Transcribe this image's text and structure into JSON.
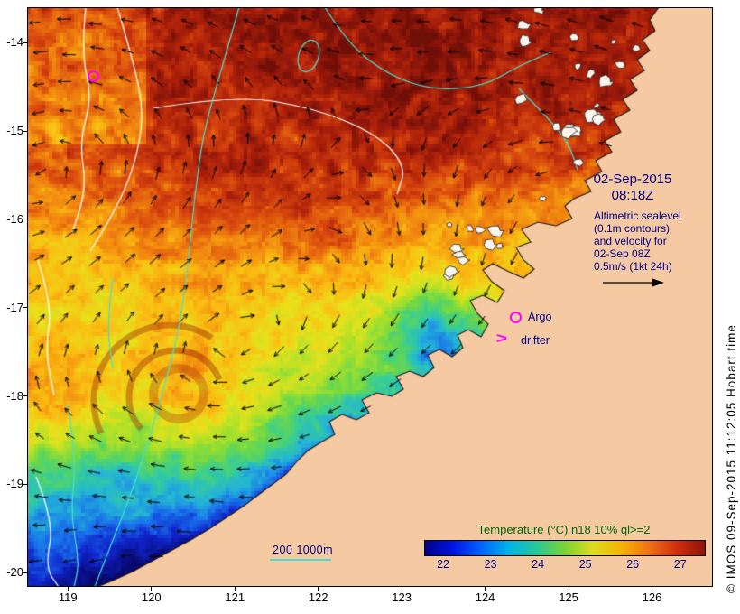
{
  "map": {
    "datetime": {
      "line1": "02-Sep-2015",
      "line2": "08:18Z"
    },
    "altimetric_note": [
      "Altimetric sealevel",
      "(0.1m contours)",
      "and velocity for",
      "02-Sep 08Z",
      "0.5m/s (1kt 24h)"
    ],
    "legend": {
      "argo": "Argo",
      "drifter": "drifter",
      "drifter_symbol": ">"
    },
    "depth_contour_label": "200  1000m",
    "copyright": "© IMOS 09-Sep-2015 11:12:05 Hobart time"
  },
  "axes": {
    "x_ticks": [
      119,
      120,
      121,
      122,
      123,
      124,
      125,
      126
    ],
    "y_ticks": [
      -14,
      -15,
      -16,
      -17,
      -18,
      -19,
      -20
    ],
    "x_range": [
      118.51,
      126.73
    ],
    "y_range": [
      -13.6,
      -20.16
    ]
  },
  "colorbar": {
    "title": "Temperature (°C) n18 10% ql>=2",
    "ticks": [
      22,
      23,
      24,
      25,
      26,
      27
    ],
    "range": [
      21.6,
      27.5
    ],
    "colors": [
      "#00008b",
      "#0014e0",
      "#0064ff",
      "#00b4e6",
      "#28c896",
      "#7dd232",
      "#dcdc1e",
      "#f5b400",
      "#f07314",
      "#d22d0f",
      "#8c1408"
    ]
  },
  "colors": {
    "land": "#f5c9a2",
    "island": "#f9f4ec",
    "annotation": "#00008b",
    "marker": "#ff00ff",
    "contour_white": "#ffffff",
    "contour_cyan": "#45e0cf",
    "cbar_title": "#006400",
    "coastline": "#1a1a1a"
  }
}
